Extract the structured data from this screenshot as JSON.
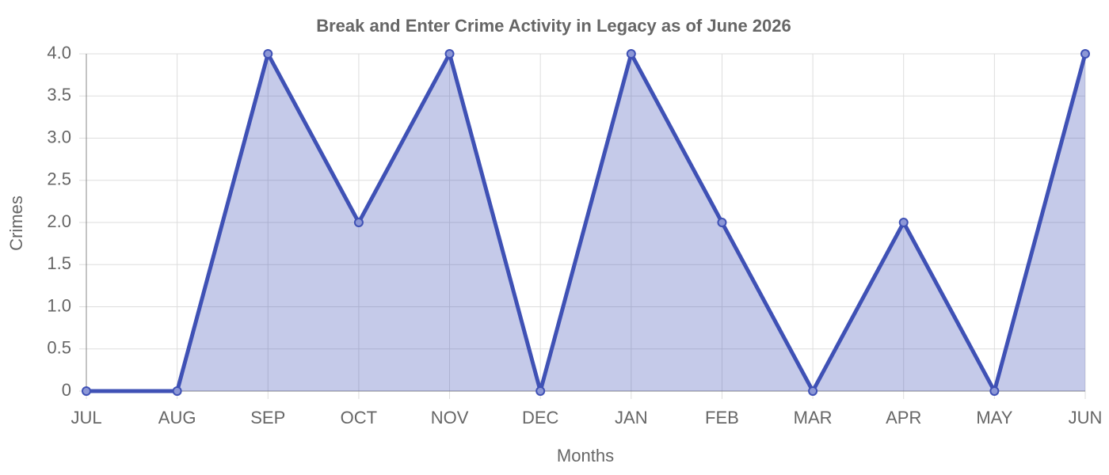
{
  "chart_data": {
    "type": "line",
    "title": "Break and Enter Crime Activity in Legacy as of June 2026",
    "x_label": "Months",
    "y_label": "Crimes",
    "categories": [
      "JUL",
      "AUG",
      "SEP",
      "OCT",
      "NOV",
      "DEC",
      "JAN",
      "FEB",
      "MAR",
      "APR",
      "MAY",
      "JUN"
    ],
    "values": [
      0,
      0,
      4,
      2,
      4,
      0,
      4,
      2,
      0,
      2,
      0,
      4
    ],
    "color": "#3f51b5",
    "fill": true,
    "ylim": [
      0,
      4
    ],
    "yticks": [
      0,
      0.5,
      {
        "value": 1,
        "label": "1.0"
      },
      1.5,
      {
        "value": 2,
        "label": "2.0"
      },
      2.5,
      {
        "value": 3,
        "label": "3.0"
      },
      3.5,
      {
        "value": 4,
        "label": "4.0"
      }
    ],
    "grid": true
  }
}
